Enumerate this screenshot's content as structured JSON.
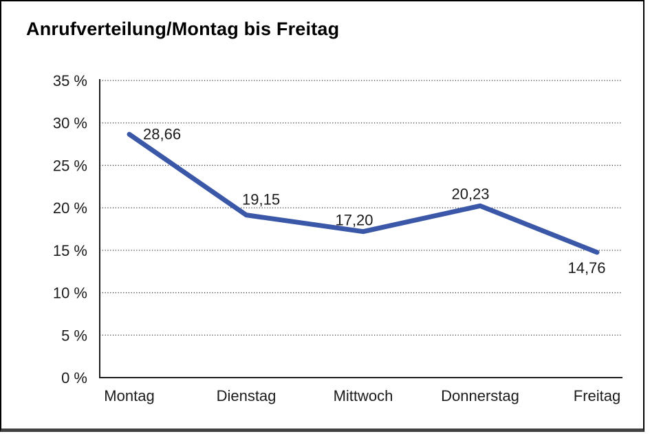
{
  "chart_data": {
    "type": "line",
    "title": "Anrufverteilung/Montag bis Freitag",
    "categories": [
      "Montag",
      "Dienstag",
      "Mittwoch",
      "Donnerstag",
      "Freitag"
    ],
    "series": [
      {
        "name": "Anrufverteilung",
        "values": [
          28.66,
          19.15,
          17.2,
          20.23,
          14.76
        ]
      }
    ],
    "value_labels": [
      "28,66",
      "19,15",
      "17,20",
      "20,23",
      "14,76"
    ],
    "y_ticks": [
      "0 %",
      "5 %",
      "10 %",
      "15 %",
      "20 %",
      "25 %",
      "30 %",
      "35 %"
    ],
    "y_tick_values": [
      0,
      5,
      10,
      15,
      20,
      25,
      30,
      35
    ],
    "ylim": [
      0,
      35
    ],
    "xlabel": "",
    "ylabel": "",
    "grid": "horizontal-dotted",
    "legend": "none",
    "colors": {
      "line": "#3A57A8",
      "grid": "#333333",
      "axis": "#1a1a1a",
      "text": "#1a1a1a",
      "title": "#000000",
      "frame_border": "#000000",
      "frame_bottom_border": "#414141",
      "background": "#ffffff"
    }
  }
}
